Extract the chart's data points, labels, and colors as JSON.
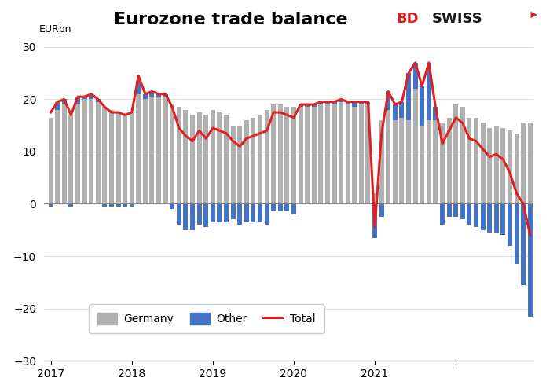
{
  "title": "Eurozone trade balance",
  "ylabel": "EURbn",
  "ylim": [
    -30,
    30
  ],
  "yticks": [
    -30,
    -20,
    -10,
    0,
    10,
    20,
    30
  ],
  "bar_width": 0.7,
  "germany": [
    16.5,
    18.0,
    19.0,
    17.0,
    19.0,
    20.0,
    20.0,
    19.5,
    18.5,
    18.0,
    17.5,
    17.0,
    17.5,
    21.0,
    20.0,
    20.5,
    20.5,
    20.5,
    19.0,
    18.5,
    18.0,
    17.0,
    17.5,
    17.0,
    18.0,
    17.5,
    17.0,
    15.0,
    15.0,
    16.0,
    16.5,
    17.0,
    18.0,
    19.0,
    19.0,
    18.5,
    18.5,
    18.5,
    18.5,
    18.5,
    19.0,
    19.0,
    19.0,
    19.5,
    19.0,
    18.5,
    19.0,
    19.0,
    2.0,
    16.0,
    18.0,
    16.0,
    16.5,
    16.0,
    22.0,
    15.0,
    16.0,
    16.0,
    15.5,
    16.5,
    19.0,
    18.5,
    16.5,
    16.5,
    15.5,
    14.5,
    15.0,
    14.5,
    14.0,
    13.5,
    15.5,
    15.5
  ],
  "other": [
    -0.5,
    1.5,
    1.0,
    -0.5,
    1.5,
    0.5,
    1.0,
    0.5,
    -0.5,
    -0.5,
    -0.5,
    -0.5,
    -0.5,
    2.5,
    1.0,
    1.0,
    0.5,
    0.5,
    -1.0,
    -4.0,
    -5.0,
    -5.0,
    -4.0,
    -4.5,
    -3.5,
    -3.5,
    -3.5,
    -3.0,
    -4.0,
    -3.5,
    -3.5,
    -3.5,
    -4.0,
    -1.5,
    -1.5,
    -1.5,
    -2.0,
    0.5,
    0.5,
    0.5,
    0.5,
    0.5,
    0.5,
    0.5,
    0.5,
    1.0,
    0.5,
    0.5,
    -6.5,
    -2.5,
    3.5,
    3.0,
    3.0,
    9.0,
    5.0,
    7.5,
    11.0,
    2.5,
    -4.0,
    -2.5,
    -2.5,
    -3.0,
    -4.0,
    -4.5,
    -5.0,
    -5.5,
    -5.5,
    -6.0,
    -8.0,
    -11.5,
    -15.5,
    -21.5
  ],
  "total": [
    17.5,
    19.5,
    20.0,
    17.0,
    20.5,
    20.5,
    21.0,
    20.0,
    18.5,
    17.5,
    17.5,
    17.0,
    17.5,
    24.5,
    21.0,
    21.5,
    21.0,
    21.0,
    18.5,
    14.5,
    13.0,
    12.0,
    14.0,
    12.5,
    14.5,
    14.0,
    13.5,
    12.0,
    11.0,
    12.5,
    13.0,
    13.5,
    14.0,
    17.5,
    17.5,
    17.0,
    16.5,
    19.0,
    19.0,
    19.0,
    19.5,
    19.5,
    19.5,
    20.0,
    19.5,
    19.5,
    19.5,
    19.5,
    -4.5,
    13.5,
    21.5,
    19.0,
    19.5,
    25.0,
    27.0,
    22.5,
    27.0,
    18.5,
    11.5,
    14.0,
    16.5,
    15.5,
    12.5,
    12.0,
    10.5,
    9.0,
    9.5,
    8.5,
    6.0,
    2.0,
    0.0,
    -6.0
  ],
  "n_months": 72,
  "start_year": 2017,
  "germany_color": "#b0b0b0",
  "other_color": "#4472c4",
  "total_color": "#e02020",
  "background_color": "#ffffff",
  "grid_color": "#d0d0d0",
  "zero_line_color": "#888888",
  "title_fontsize": 16,
  "axis_fontsize": 10,
  "legend_fontsize": 10
}
